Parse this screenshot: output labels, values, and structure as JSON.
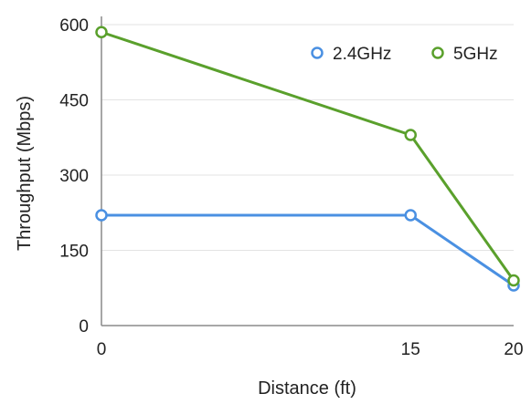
{
  "chart_data": {
    "type": "line",
    "x": [
      0,
      15,
      20
    ],
    "series": [
      {
        "name": "2.4GHz",
        "values": [
          220,
          220,
          80
        ],
        "color": "#4a90e2"
      },
      {
        "name": "5GHz",
        "values": [
          585,
          380,
          90
        ],
        "color": "#5aa02c"
      }
    ],
    "xlabel": "Distance (ft)",
    "ylabel": "Throughput (Mbps)",
    "x_ticks": [
      "0",
      "15",
      "20"
    ],
    "y_ticks": [
      "0",
      "150",
      "300",
      "450",
      "600"
    ],
    "ylim": [
      0,
      600
    ],
    "grid": "horizontal",
    "legend": "top-right"
  }
}
